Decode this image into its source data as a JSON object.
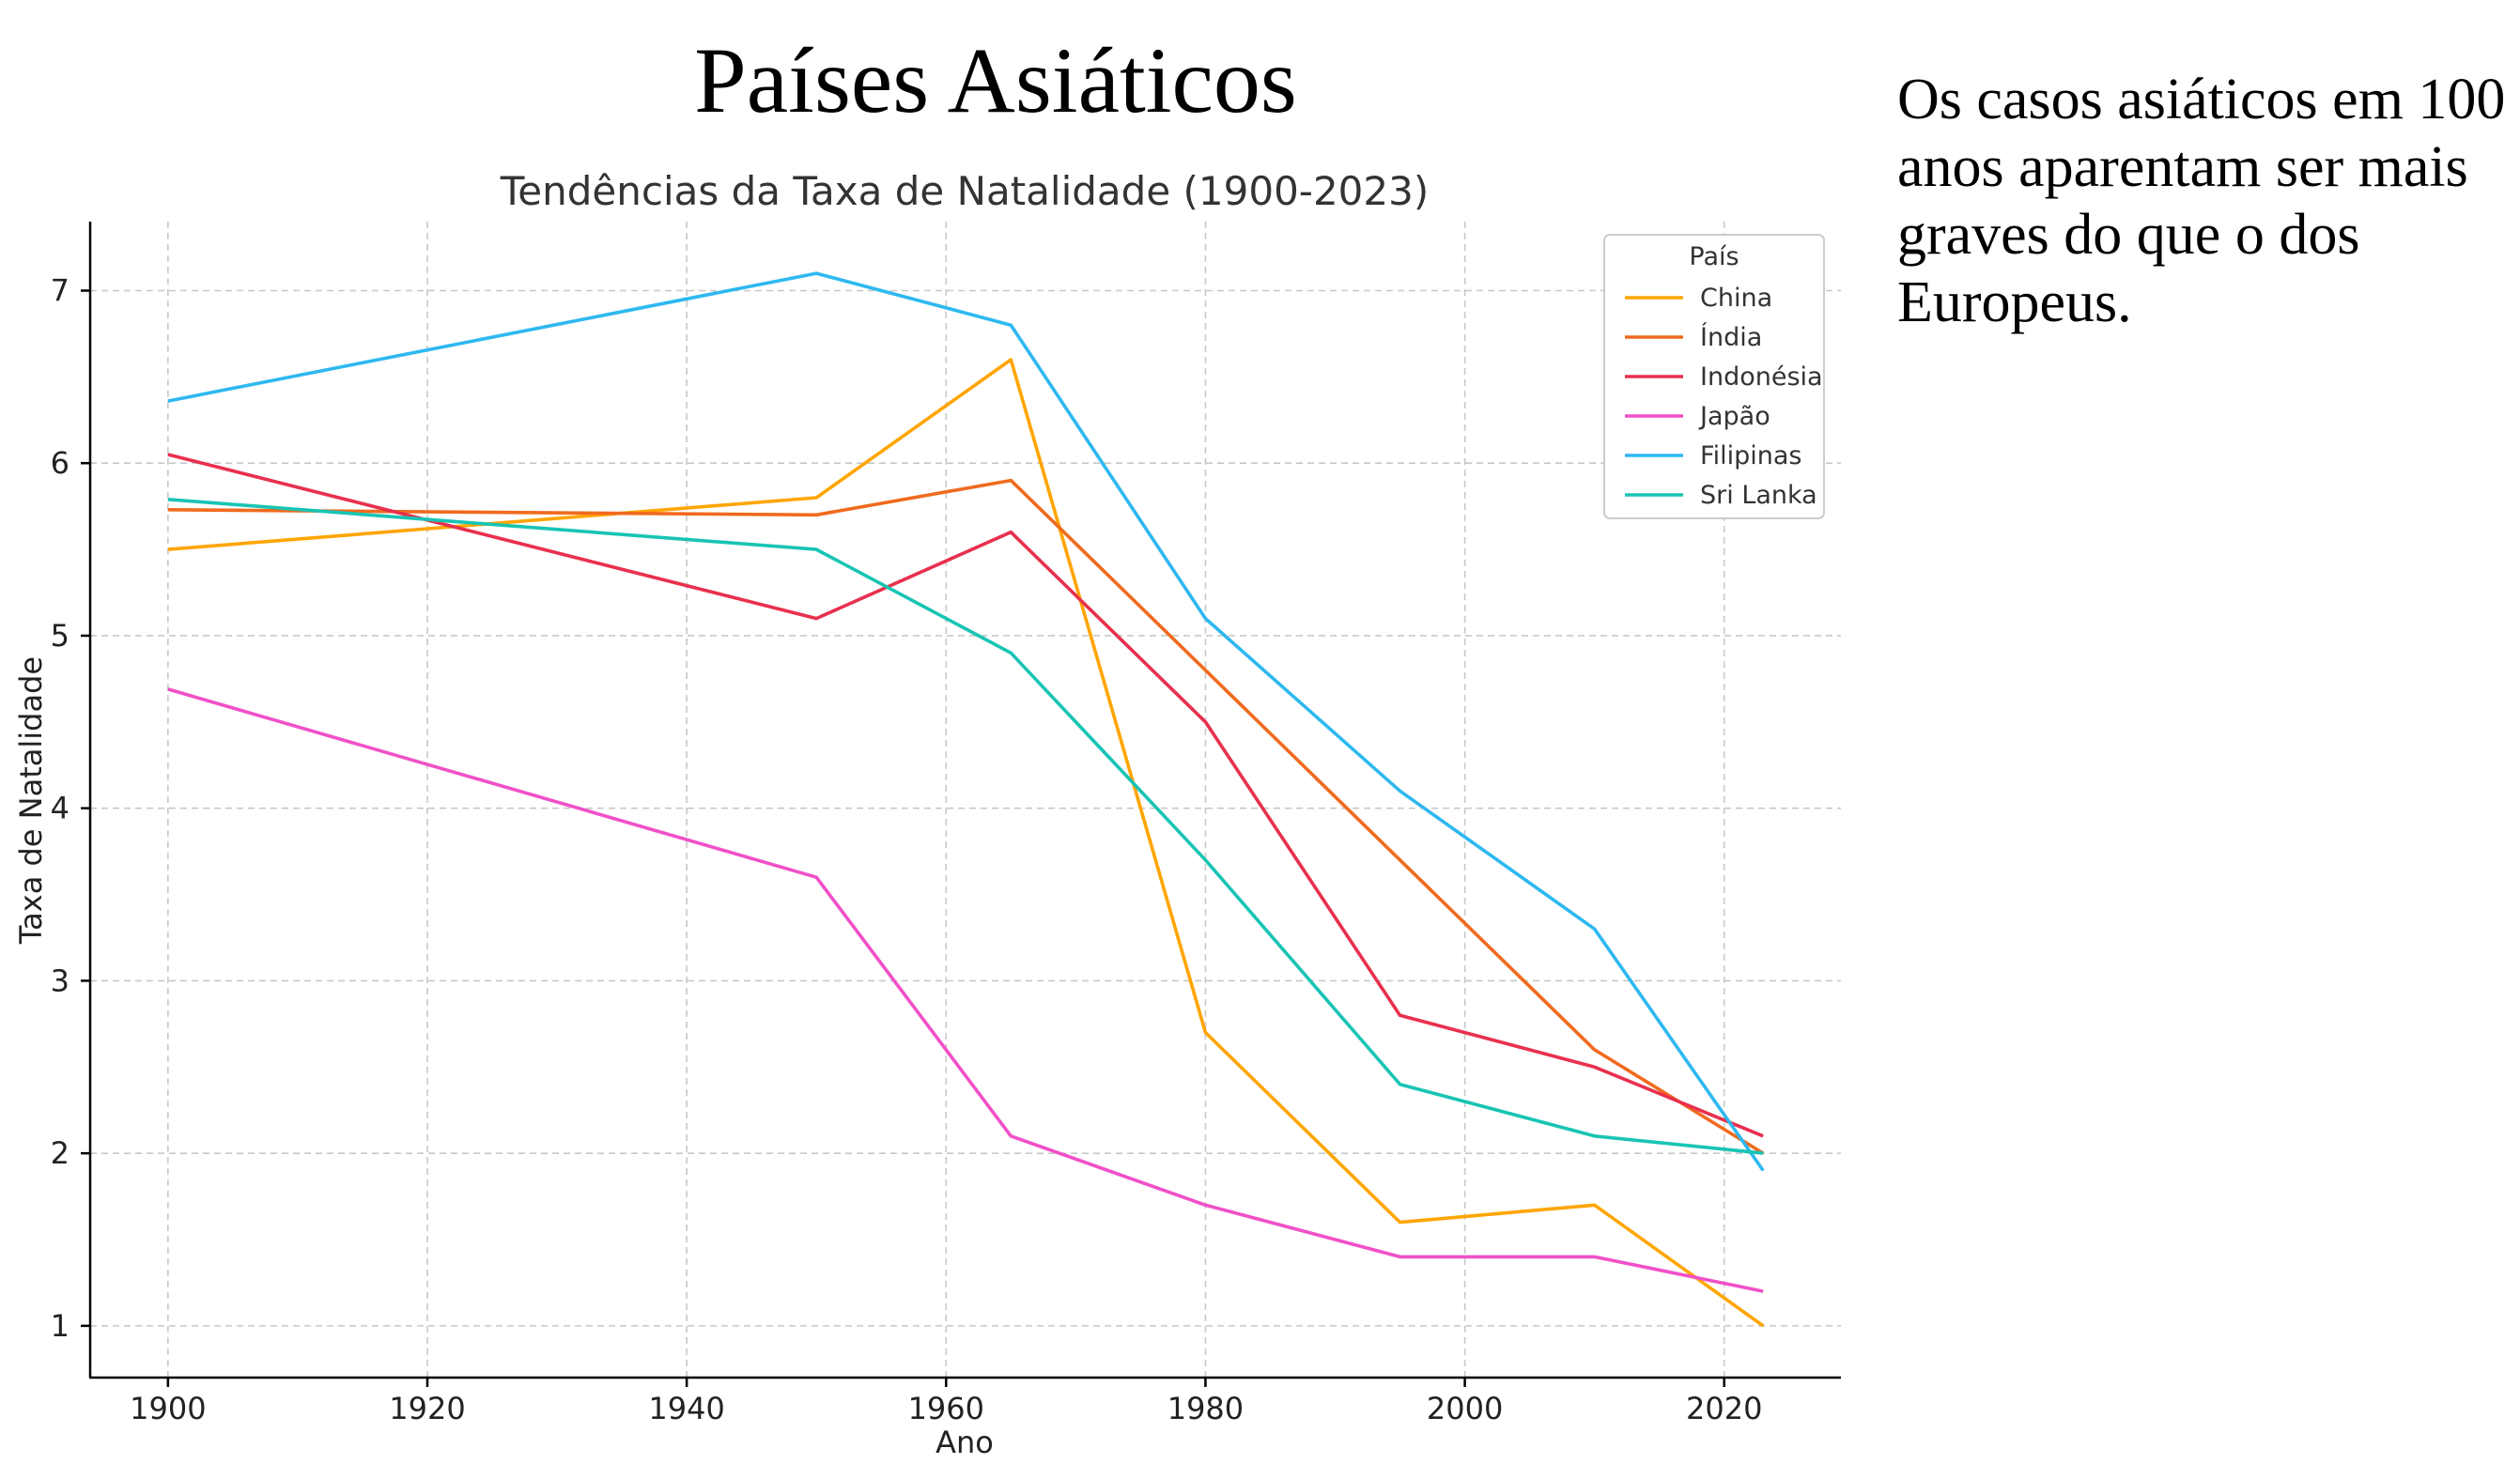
{
  "slide": {
    "title": "Países Asiáticos",
    "note": "Os casos asiáticos em 100 anos aparentam ser mais graves do que o dos Europeus."
  },
  "chart_data": {
    "type": "line",
    "title": "Tendências da Taxa de Natalidade (1900-2023)",
    "xlabel": "Ano",
    "ylabel": "Taxa de Natalidade",
    "xlim": [
      1894,
      2029
    ],
    "ylim": [
      0.7,
      7.4
    ],
    "xticks": [
      1900,
      1920,
      1940,
      1960,
      1980,
      2000,
      2020
    ],
    "yticks": [
      1,
      2,
      3,
      4,
      5,
      6,
      7
    ],
    "grid": true,
    "legend": {
      "title": "País",
      "placement": "top-right"
    },
    "x": [
      1900,
      1950,
      1965,
      1980,
      1995,
      2010,
      2023
    ],
    "series": [
      {
        "name": "China",
        "color": "#FFA500",
        "values": [
          5.5,
          5.8,
          6.6,
          2.7,
          1.6,
          1.7,
          1.0
        ]
      },
      {
        "name": "Índia",
        "color": "#F06A1E",
        "values": [
          5.73,
          5.7,
          5.9,
          4.8,
          3.7,
          2.6,
          2.0
        ]
      },
      {
        "name": "Indonésia",
        "color": "#E8304E",
        "values": [
          6.05,
          5.1,
          5.6,
          4.5,
          2.8,
          2.5,
          2.1
        ]
      },
      {
        "name": "Japão",
        "color": "#F050C8",
        "values": [
          4.69,
          3.6,
          2.1,
          1.7,
          1.4,
          1.4,
          1.2
        ]
      },
      {
        "name": "Filipinas",
        "color": "#2EB8F0",
        "values": [
          6.36,
          7.1,
          6.8,
          5.1,
          4.1,
          3.3,
          1.9
        ]
      },
      {
        "name": "Sri Lanka",
        "color": "#18C4B4",
        "values": [
          5.79,
          5.5,
          4.9,
          3.7,
          2.4,
          2.1,
          2.0
        ]
      }
    ]
  }
}
